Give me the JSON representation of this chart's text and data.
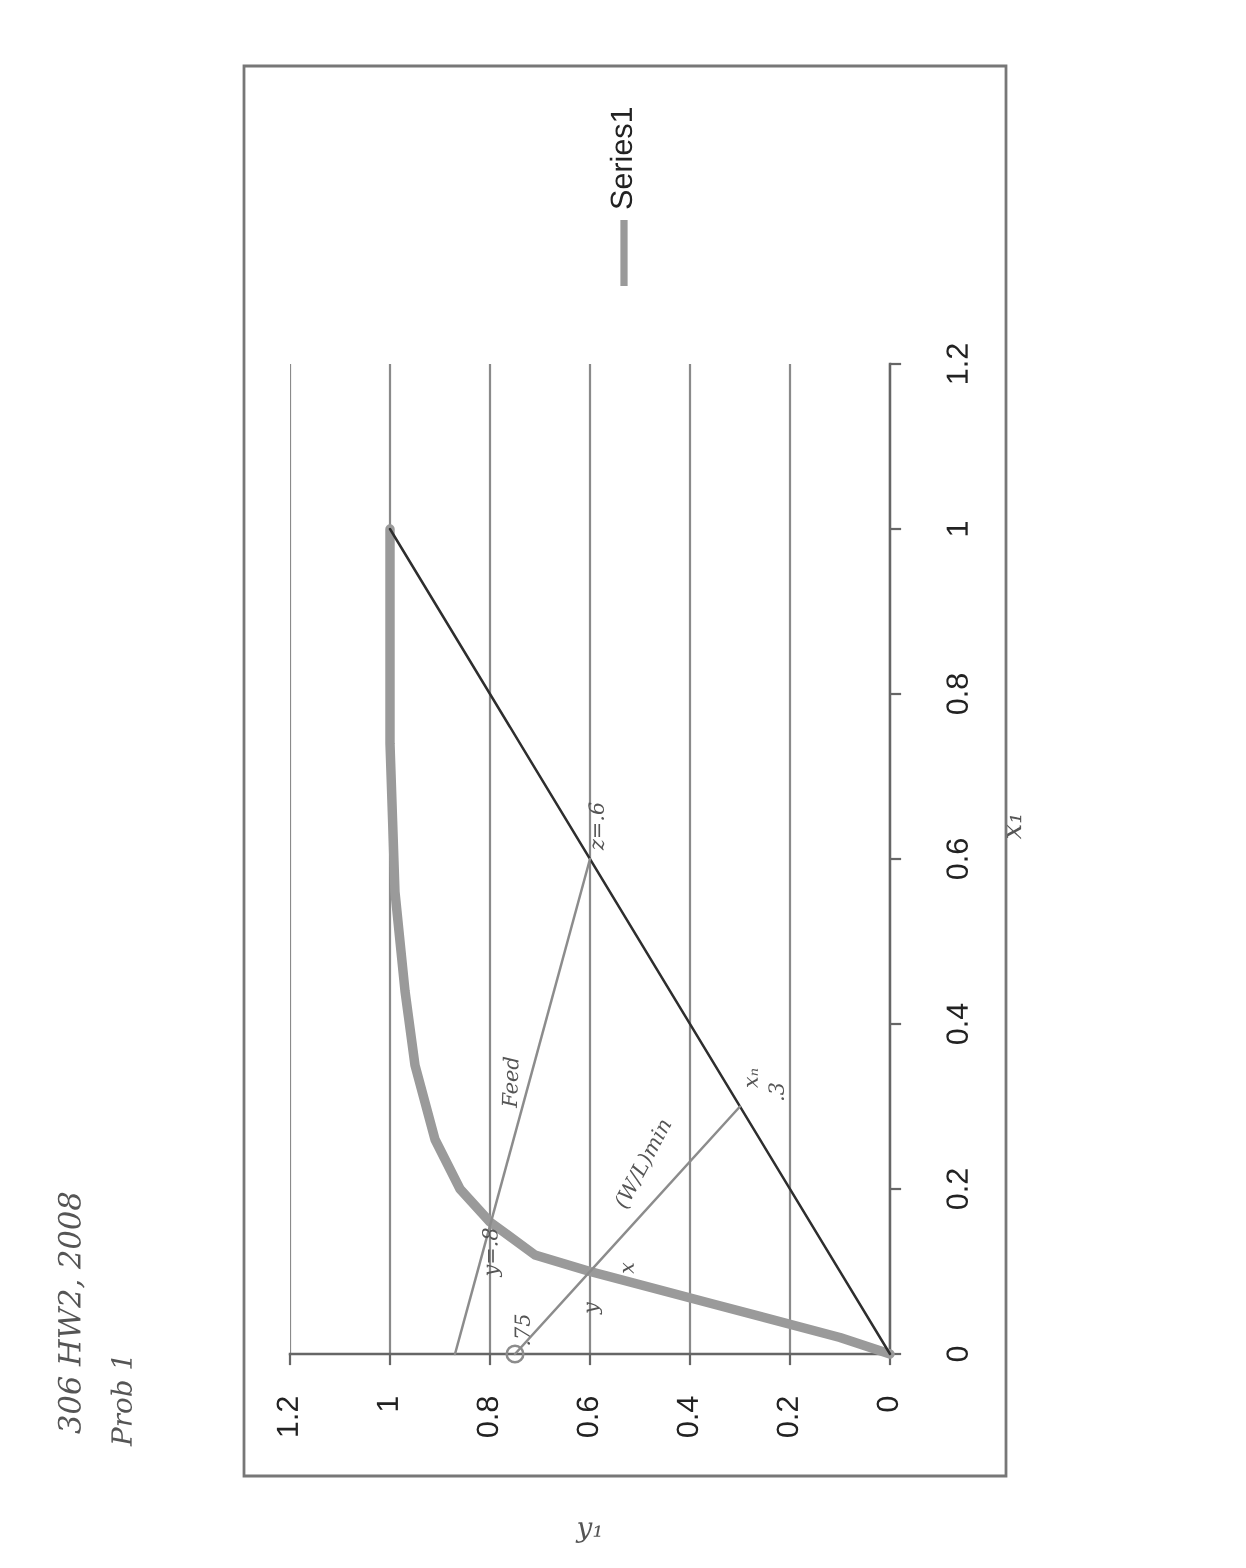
{
  "chart_data": {
    "type": "line",
    "title": "306 HW2, 2008",
    "subtitle": "Prob 1",
    "xlabel": "y₁",
    "ylabel": "x₁",
    "xlim": [
      1.2,
      0
    ],
    "xticks": [
      1.2,
      1,
      0.8,
      0.6,
      0.4,
      0.2,
      0
    ],
    "ylim": [
      0,
      1.2
    ],
    "yticks": [
      0,
      0.2,
      0.4,
      0.6,
      0.8,
      1,
      1.2
    ],
    "grid": "x",
    "legend": "top",
    "series": [
      {
        "name": "Series1",
        "color": "#9a9a9a",
        "x": [
          0,
          0.1,
          0.35,
          0.6,
          0.71,
          0.8,
          0.86,
          0.91,
          0.95,
          0.97,
          0.99,
          1,
          1
        ],
        "values": [
          0,
          0.02,
          0.06,
          0.1,
          0.12,
          0.16,
          0.2,
          0.26,
          0.35,
          0.44,
          0.56,
          0.74,
          1
        ]
      },
      {
        "color": "#2e2e2e",
        "x": [
          0,
          1
        ],
        "values": [
          0,
          1
        ]
      },
      {
        "color": "#8c8c8c",
        "x": [
          0.87,
          0.6
        ],
        "values": [
          0,
          0.6
        ]
      },
      {
        "color": "#8c8c8c",
        "x": [
          0.75,
          0.3
        ],
        "values": [
          0,
          0.3
        ]
      },
      {
        "type": "scatter",
        "marker": "circle",
        "color": "#8c8c8c",
        "x": [
          0.75
        ],
        "values": [
          0
        ]
      }
    ],
    "annotations": [
      "Feed",
      "(W/L)min",
      "z=.6",
      "y=.8",
      "y",
      "x",
      ".75",
      "xₙ",
      ".3"
    ]
  }
}
